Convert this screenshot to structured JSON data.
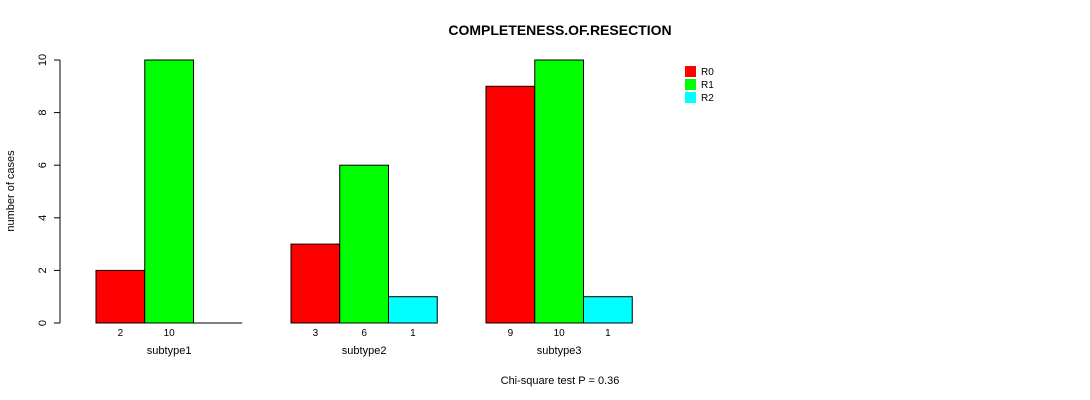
{
  "chart_data": {
    "type": "bar",
    "title": "COMPLETENESS.OF.RESECTION",
    "ylabel": "number of cases",
    "xlabel": "",
    "subtitle": "Chi-square test P = 0.36",
    "ylim": [
      0,
      10
    ],
    "yticks": [
      "0",
      "2",
      "4",
      "6",
      "8",
      "10"
    ],
    "categories": [
      "subtype1",
      "subtype2",
      "subtype3"
    ],
    "series": [
      {
        "name": "R0",
        "color": "#ff0000",
        "values": [
          2,
          3,
          9
        ],
        "labels": [
          "2",
          "3",
          "9"
        ]
      },
      {
        "name": "R1",
        "color": "#00ff00",
        "values": [
          10,
          6,
          10
        ],
        "labels": [
          "10",
          "6",
          "10"
        ]
      },
      {
        "name": "R2",
        "color": "#00ffff",
        "values": [
          0,
          1,
          1
        ],
        "labels": [
          "",
          "1",
          "1"
        ]
      }
    ],
    "legend_position": "top-right",
    "grid": false
  }
}
